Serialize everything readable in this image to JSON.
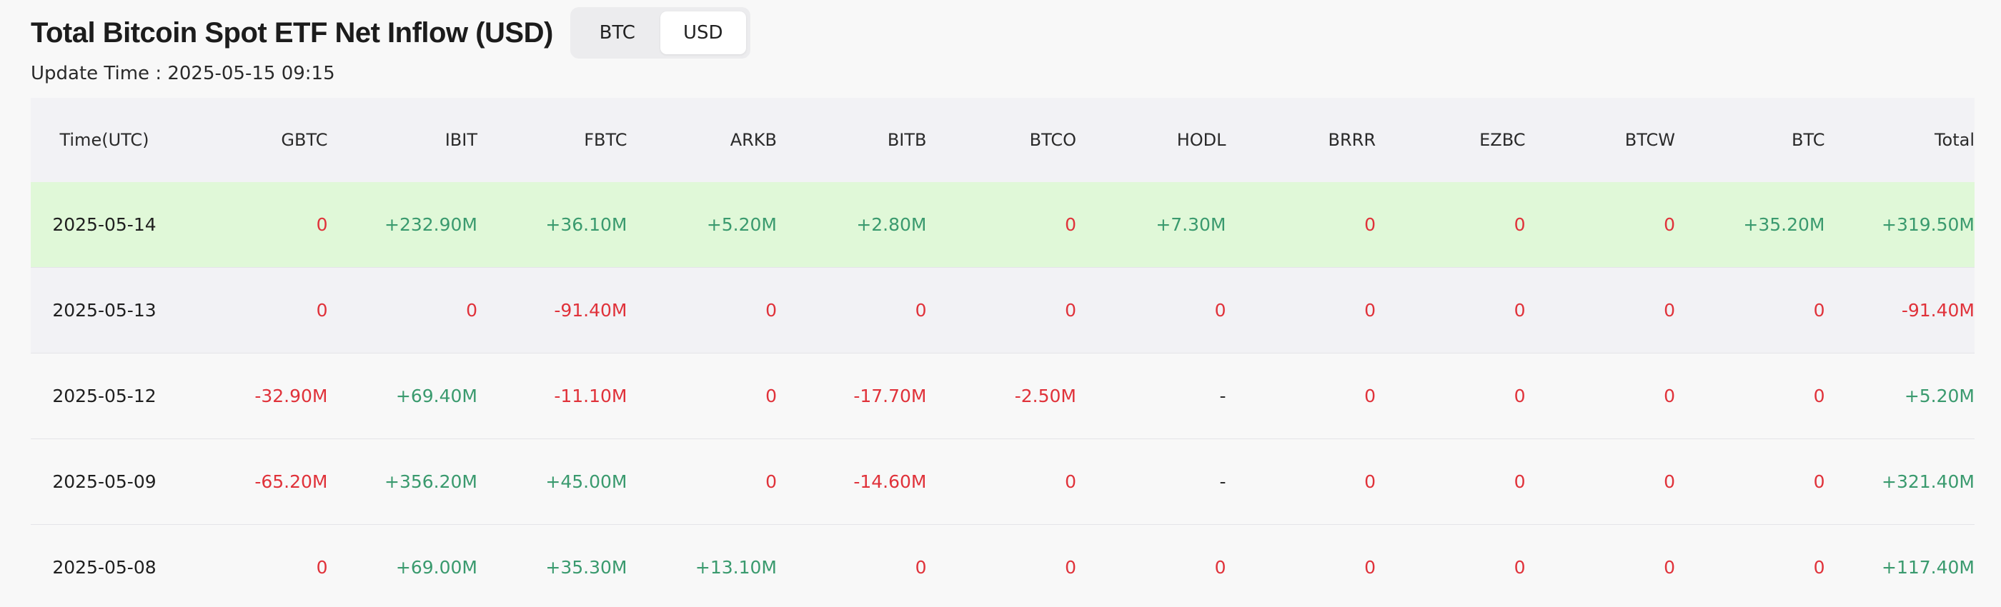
{
  "header": {
    "title": "Total Bitcoin Spot ETF Net Inflow (USD)",
    "toggle": [
      {
        "label": "BTC",
        "active": false
      },
      {
        "label": "USD",
        "active": true
      }
    ],
    "update_time": "Update Time : 2025-05-15 09:15"
  },
  "colors": {
    "positive": "#3a9a6e",
    "negative": "#e0323a",
    "highlight_row": "#e0f8d8"
  },
  "table": {
    "columns": [
      "Time(UTC)",
      "GBTC",
      "IBIT",
      "FBTC",
      "ARKB",
      "BITB",
      "BTCO",
      "HODL",
      "BRRR",
      "EZBC",
      "BTCW",
      "BTC",
      "Total"
    ],
    "rows": [
      [
        "2025-05-14",
        "0",
        "+232.90M",
        "+36.10M",
        "+5.20M",
        "+2.80M",
        "0",
        "+7.30M",
        "0",
        "0",
        "0",
        "+35.20M",
        "+319.50M"
      ],
      [
        "2025-05-13",
        "0",
        "0",
        "-91.40M",
        "0",
        "0",
        "0",
        "0",
        "0",
        "0",
        "0",
        "0",
        "-91.40M"
      ],
      [
        "2025-05-12",
        "-32.90M",
        "+69.40M",
        "-11.10M",
        "0",
        "-17.70M",
        "-2.50M",
        "-",
        "0",
        "0",
        "0",
        "0",
        "+5.20M"
      ],
      [
        "2025-05-09",
        "-65.20M",
        "+356.20M",
        "+45.00M",
        "0",
        "-14.60M",
        "0",
        "-",
        "0",
        "0",
        "0",
        "0",
        "+321.40M"
      ],
      [
        "2025-05-08",
        "0",
        "+69.00M",
        "+35.30M",
        "+13.10M",
        "0",
        "0",
        "0",
        "0",
        "0",
        "0",
        "0",
        "+117.40M"
      ]
    ]
  }
}
